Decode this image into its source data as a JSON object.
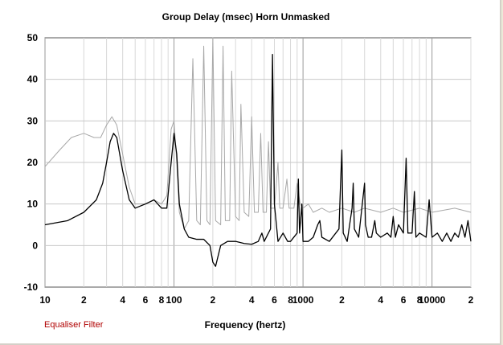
{
  "chart_data": {
    "type": "line",
    "title": "Group Delay (msec)    Horn    Unmasked",
    "xlabel": "Frequency (hertz)",
    "ylabel": "",
    "xscale": "log",
    "xlim": [
      10,
      20000
    ],
    "ylim": [
      -10,
      50
    ],
    "grid": true,
    "x_tick_labels": [
      {
        "value": 10,
        "label": "10"
      },
      {
        "value": 20,
        "label": "2"
      },
      {
        "value": 40,
        "label": "4"
      },
      {
        "value": 60,
        "label": "6"
      },
      {
        "value": 80,
        "label": "8"
      },
      {
        "value": 100,
        "label": "100"
      },
      {
        "value": 200,
        "label": "2"
      },
      {
        "value": 400,
        "label": "4"
      },
      {
        "value": 600,
        "label": "6"
      },
      {
        "value": 800,
        "label": "8"
      },
      {
        "value": 1000,
        "label": "1000"
      },
      {
        "value": 2000,
        "label": "2"
      },
      {
        "value": 4000,
        "label": "4"
      },
      {
        "value": 6000,
        "label": "6"
      },
      {
        "value": 8000,
        "label": "8"
      },
      {
        "value": 10000,
        "label": "10000"
      },
      {
        "value": 20000,
        "label": "2"
      }
    ],
    "y_ticks": [
      50,
      40,
      30,
      20,
      10,
      0,
      -10
    ],
    "legend_text": "Equaliser Filter",
    "series": [
      {
        "color": "#000000",
        "points": [
          [
            10,
            5
          ],
          [
            15,
            6
          ],
          [
            20,
            8
          ],
          [
            25,
            11
          ],
          [
            28,
            15
          ],
          [
            30,
            20
          ],
          [
            32,
            25
          ],
          [
            34,
            27
          ],
          [
            36,
            26
          ],
          [
            40,
            18
          ],
          [
            45,
            11
          ],
          [
            50,
            9
          ],
          [
            60,
            10
          ],
          [
            70,
            11
          ],
          [
            80,
            9
          ],
          [
            88,
            9
          ],
          [
            95,
            20
          ],
          [
            100,
            27
          ],
          [
            105,
            22
          ],
          [
            110,
            10
          ],
          [
            120,
            4
          ],
          [
            130,
            2
          ],
          [
            150,
            1.5
          ],
          [
            170,
            1.5
          ],
          [
            190,
            0
          ],
          [
            200,
            -4
          ],
          [
            210,
            -5
          ],
          [
            230,
            0
          ],
          [
            260,
            1
          ],
          [
            300,
            1
          ],
          [
            350,
            0.5
          ],
          [
            400,
            0.3
          ],
          [
            450,
            1
          ],
          [
            480,
            3
          ],
          [
            500,
            1
          ],
          [
            560,
            4
          ],
          [
            580,
            46
          ],
          [
            600,
            10
          ],
          [
            640,
            1
          ],
          [
            700,
            3
          ],
          [
            760,
            1
          ],
          [
            800,
            1
          ],
          [
            900,
            3
          ],
          [
            920,
            16
          ],
          [
            940,
            3
          ],
          [
            980,
            10
          ],
          [
            1000,
            1
          ],
          [
            1100,
            1
          ],
          [
            1200,
            2
          ],
          [
            1300,
            5
          ],
          [
            1350,
            6
          ],
          [
            1400,
            2
          ],
          [
            1600,
            1
          ],
          [
            1900,
            4
          ],
          [
            1950,
            14
          ],
          [
            2000,
            23
          ],
          [
            2050,
            3
          ],
          [
            2200,
            1
          ],
          [
            2400,
            9
          ],
          [
            2450,
            15
          ],
          [
            2500,
            4
          ],
          [
            2700,
            2
          ],
          [
            3000,
            15
          ],
          [
            3050,
            5
          ],
          [
            3200,
            2
          ],
          [
            3400,
            2
          ],
          [
            3600,
            6
          ],
          [
            3700,
            3
          ],
          [
            4000,
            2
          ],
          [
            4500,
            3
          ],
          [
            4800,
            2
          ],
          [
            5000,
            7
          ],
          [
            5200,
            2
          ],
          [
            5500,
            5
          ],
          [
            6000,
            3
          ],
          [
            6300,
            21
          ],
          [
            6500,
            3
          ],
          [
            7000,
            3
          ],
          [
            7300,
            13
          ],
          [
            7500,
            2
          ],
          [
            8000,
            3
          ],
          [
            9000,
            2
          ],
          [
            9500,
            11
          ],
          [
            10000,
            2
          ],
          [
            11000,
            3
          ],
          [
            12000,
            1
          ],
          [
            13000,
            3
          ],
          [
            14000,
            1
          ],
          [
            15000,
            3
          ],
          [
            16000,
            2
          ],
          [
            17000,
            5
          ],
          [
            18000,
            2
          ],
          [
            19000,
            6
          ],
          [
            20000,
            1
          ]
        ]
      },
      {
        "color": "#a8a8a8",
        "points": [
          [
            10,
            19
          ],
          [
            13,
            23
          ],
          [
            16,
            26
          ],
          [
            20,
            27
          ],
          [
            24,
            26
          ],
          [
            27,
            26
          ],
          [
            30,
            29
          ],
          [
            33,
            31
          ],
          [
            36,
            29
          ],
          [
            40,
            22
          ],
          [
            45,
            14
          ],
          [
            50,
            10
          ],
          [
            60,
            10
          ],
          [
            70,
            11
          ],
          [
            80,
            10
          ],
          [
            88,
            12
          ],
          [
            95,
            28
          ],
          [
            100,
            30
          ],
          [
            105,
            20
          ],
          [
            110,
            8
          ],
          [
            120,
            4
          ],
          [
            130,
            6
          ],
          [
            140,
            45
          ],
          [
            150,
            6
          ],
          [
            160,
            5
          ],
          [
            170,
            48
          ],
          [
            180,
            6
          ],
          [
            190,
            5
          ],
          [
            200,
            50
          ],
          [
            210,
            6
          ],
          [
            230,
            5
          ],
          [
            240,
            48
          ],
          [
            250,
            6
          ],
          [
            270,
            6
          ],
          [
            280,
            42
          ],
          [
            300,
            7
          ],
          [
            320,
            6
          ],
          [
            330,
            34
          ],
          [
            350,
            8
          ],
          [
            380,
            7
          ],
          [
            400,
            31
          ],
          [
            420,
            8
          ],
          [
            450,
            8
          ],
          [
            470,
            27
          ],
          [
            490,
            8
          ],
          [
            520,
            8
          ],
          [
            540,
            25
          ],
          [
            560,
            9
          ],
          [
            600,
            9
          ],
          [
            640,
            20
          ],
          [
            660,
            9
          ],
          [
            700,
            9
          ],
          [
            750,
            16
          ],
          [
            780,
            9
          ],
          [
            850,
            9
          ],
          [
            900,
            15
          ],
          [
            950,
            10
          ],
          [
            1000,
            9
          ],
          [
            1100,
            10
          ],
          [
            1200,
            8
          ],
          [
            1400,
            9
          ],
          [
            1600,
            8
          ],
          [
            2000,
            9
          ],
          [
            2500,
            8
          ],
          [
            3000,
            9
          ],
          [
            4000,
            8
          ],
          [
            5000,
            9
          ],
          [
            6000,
            8
          ],
          [
            8000,
            9
          ],
          [
            10000,
            8
          ],
          [
            15000,
            9
          ],
          [
            20000,
            8
          ]
        ]
      }
    ]
  }
}
